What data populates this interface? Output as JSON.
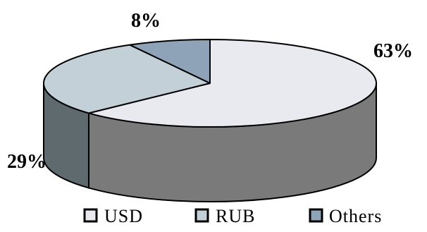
{
  "chart_data": {
    "type": "pie",
    "title": "",
    "slices": [
      {
        "name": "USD",
        "value": 63,
        "label": "63%",
        "color": "#E8EAF0"
      },
      {
        "name": "RUB",
        "value": 29,
        "label": "29%",
        "color": "#C4D0D8"
      },
      {
        "name": "Others",
        "value": 8,
        "label": "8%",
        "color": "#8EA2B8"
      }
    ],
    "legend": {
      "position": "bottom",
      "entries": [
        "USD",
        "RUB",
        "Others"
      ]
    },
    "style": {
      "three_d": true,
      "side_color": "#7A7A7A",
      "edge_color": "#000000"
    }
  }
}
